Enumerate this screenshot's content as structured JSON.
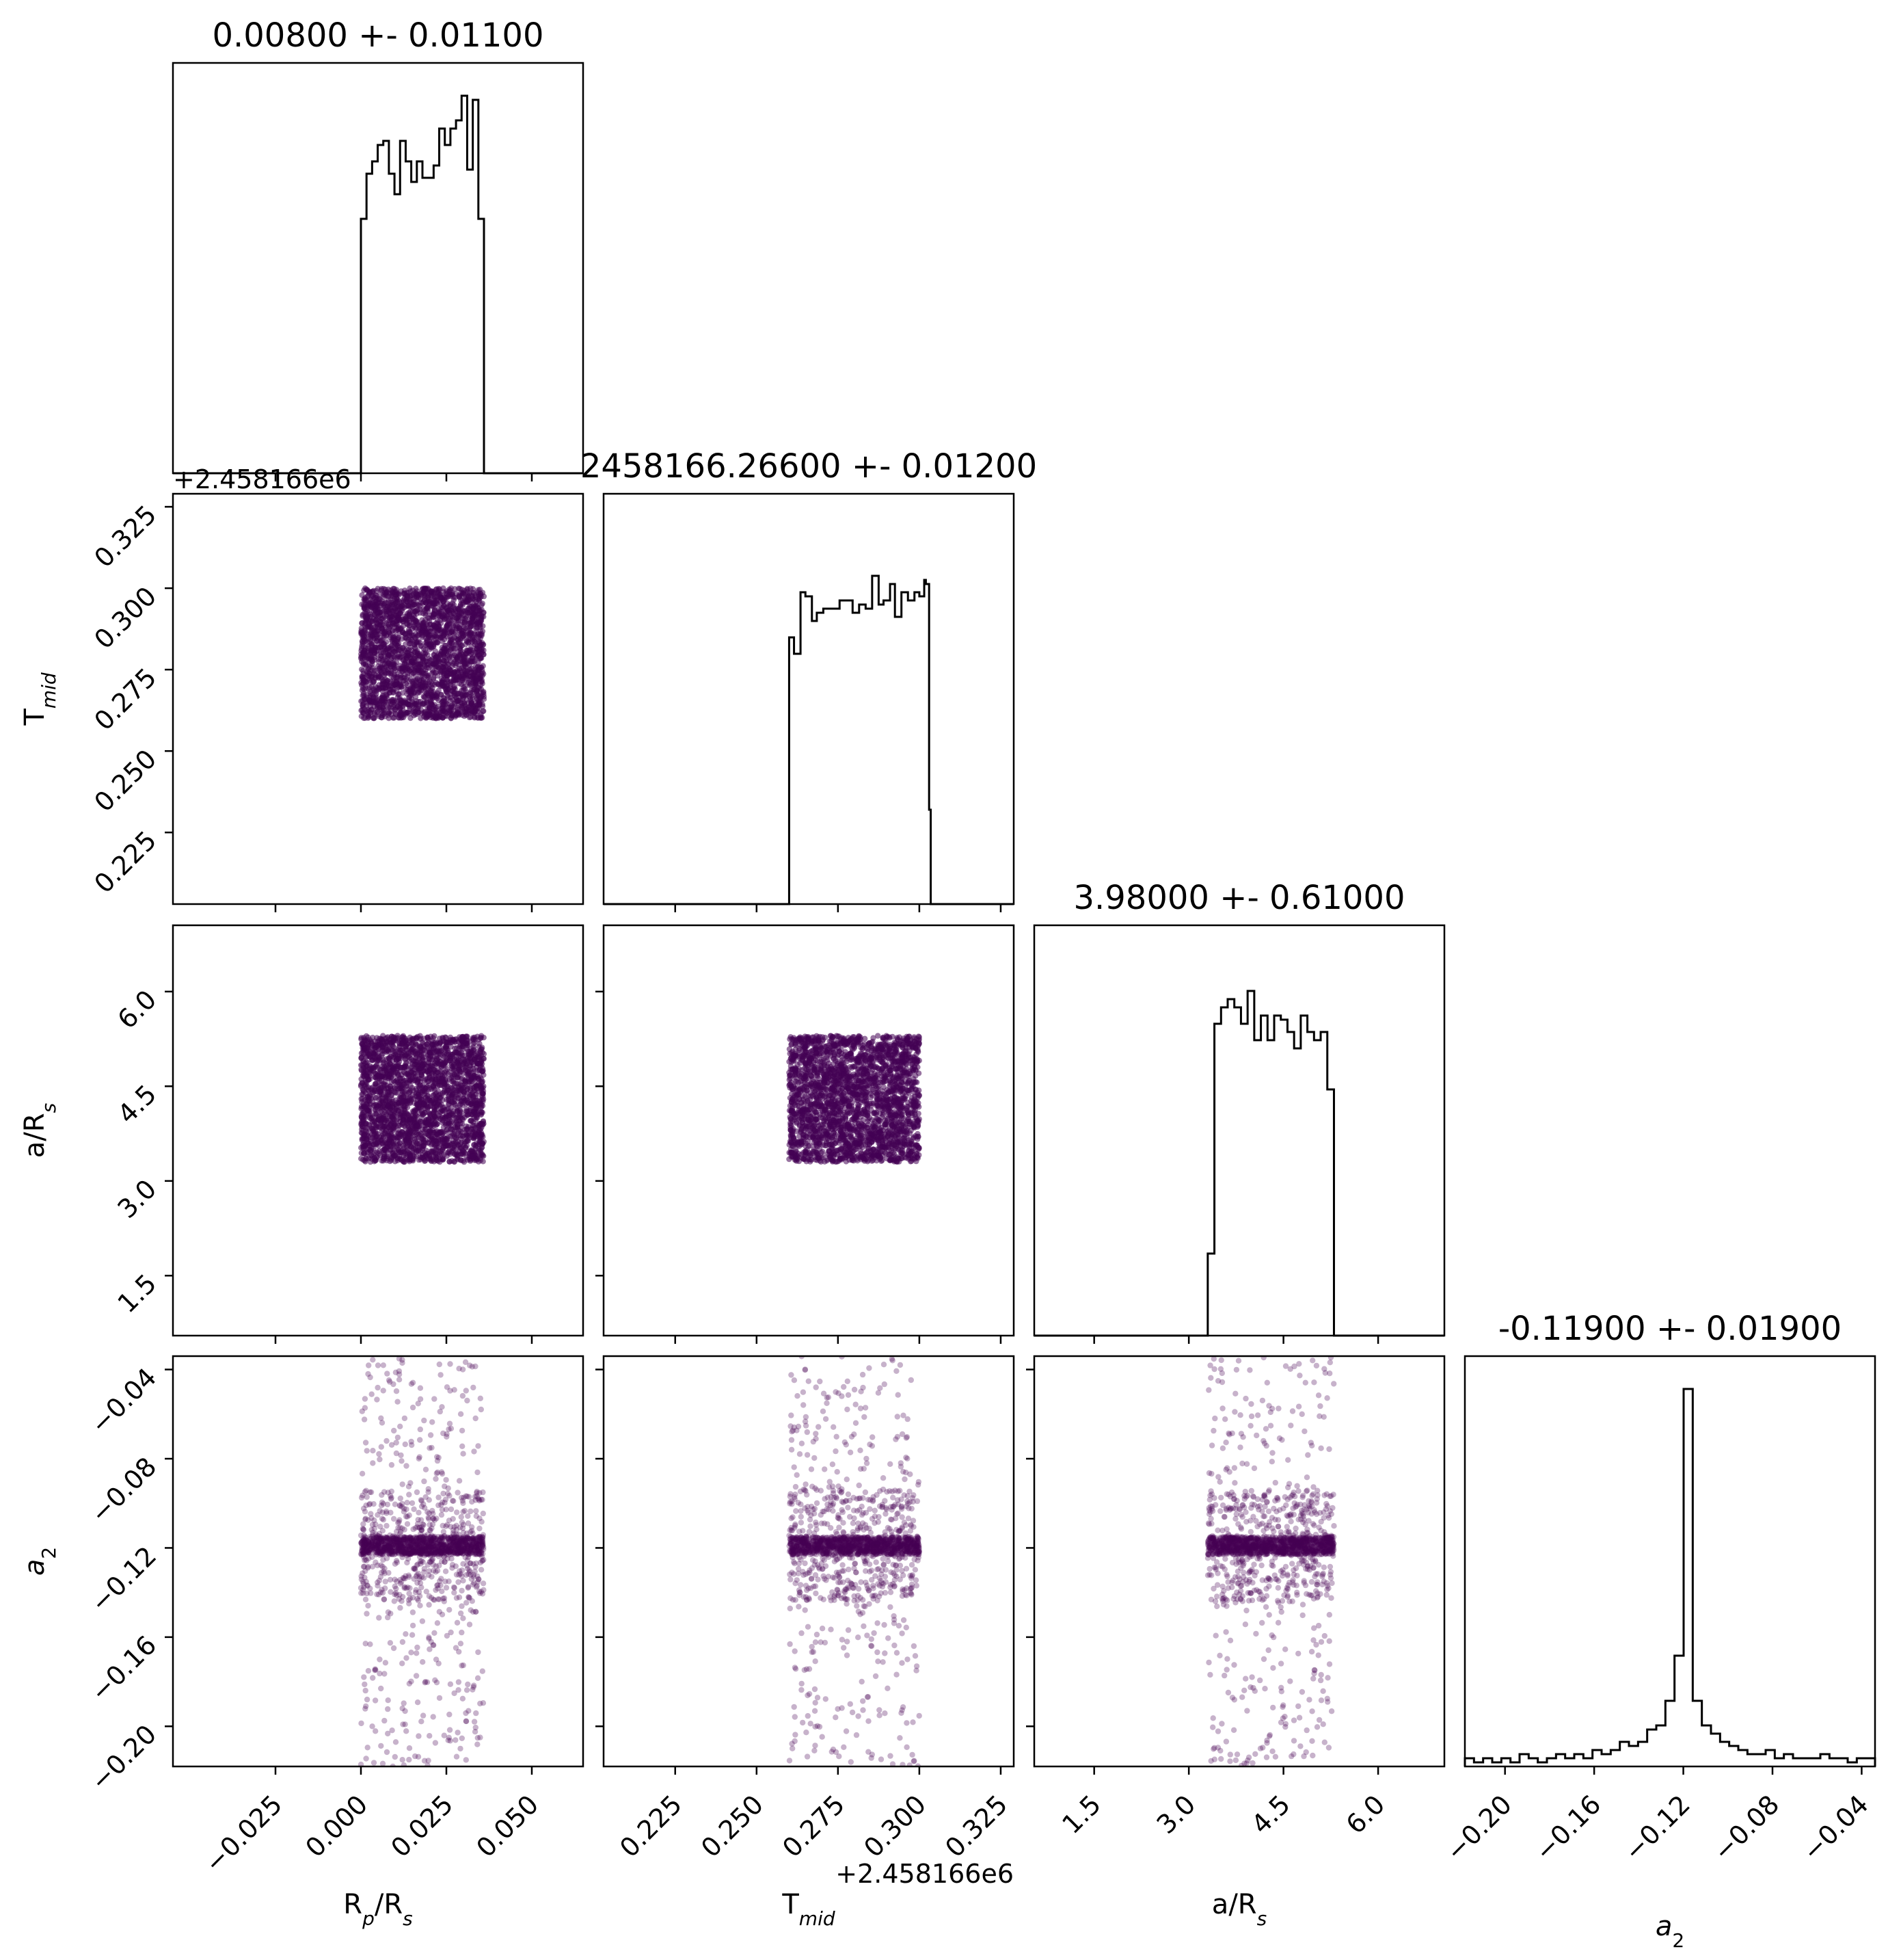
{
  "chart_data": {
    "type": "corner",
    "parameters": [
      {
        "key": "rp",
        "label_main": "R",
        "label_sub1": "p",
        "label_mid": "/R",
        "label_sub2": "s",
        "range": [
          -0.055,
          0.065
        ],
        "ticks": [
          -0.025,
          0.0,
          0.025,
          0.05
        ],
        "tick_labels": [
          "−0.025",
          "0.000",
          "0.025",
          "0.050"
        ],
        "title": "0.00800 +- 0.01100",
        "uniform_range": [
          0.0,
          0.036
        ],
        "hist_heights": [
          0.62,
          0.73,
          0.76,
          0.8,
          0.81,
          0.73,
          0.68,
          0.81,
          0.76,
          0.71,
          0.76,
          0.72,
          0.72,
          0.75,
          0.84,
          0.8,
          0.84,
          0.86,
          0.92,
          0.74,
          0.91,
          0.62
        ]
      },
      {
        "key": "tmid",
        "label_main": "T",
        "label_sub1": "mid",
        "label_mid": "",
        "label_sub2": "",
        "range": [
          0.203,
          0.329
        ],
        "ticks": [
          0.225,
          0.25,
          0.275,
          0.3,
          0.325
        ],
        "tick_labels": [
          "0.225",
          "0.250",
          "0.275",
          "0.300",
          "0.325"
        ],
        "offset_text": "+2.458166e6",
        "title": "2458166.26600 +- 0.01200",
        "uniform_range": [
          0.26,
          0.3
        ],
        "hist_heights": [
          0.65,
          0.61,
          0.76,
          0.75,
          0.69,
          0.71,
          0.72,
          0.72,
          0.74,
          0.74,
          0.71,
          0.73,
          0.72,
          0.8,
          0.73,
          0.74,
          0.78,
          0.7,
          0.76,
          0.74,
          0.76,
          0.75,
          0.79,
          0.78,
          0.23
        ],
        "hist_edges": [
          0.26,
          0.2615,
          0.2635,
          0.265,
          0.267,
          0.2685,
          0.2705,
          0.272,
          0.2755,
          0.2775,
          0.2795,
          0.2815,
          0.2835,
          0.2855,
          0.2875,
          0.289,
          0.291,
          0.2925,
          0.2945,
          0.2965,
          0.2985,
          0.3,
          0.3015,
          0.302,
          0.303,
          0.3035
        ]
      },
      {
        "key": "ars",
        "label_main": "a",
        "label_sub1": "",
        "label_mid": "/R",
        "label_sub2": "s",
        "range": [
          0.55,
          7.05
        ],
        "ticks": [
          1.5,
          3.0,
          4.5,
          6.0
        ],
        "tick_labels": [
          "1.5",
          "3.0",
          "4.5",
          "6.0"
        ],
        "title": "3.98000 +- 0.61000",
        "uniform_range": [
          3.3,
          5.3
        ],
        "hist_heights": [
          0.2,
          0.76,
          0.8,
          0.82,
          0.8,
          0.76,
          0.84,
          0.72,
          0.78,
          0.72,
          0.78,
          0.77,
          0.74,
          0.7,
          0.78,
          0.74,
          0.72,
          0.74,
          0.6
        ]
      },
      {
        "key": "a2",
        "label_main": "a",
        "label_sub1": "2",
        "label_mid": "",
        "label_sub2": "",
        "range": [
          -0.218,
          -0.034
        ],
        "ticks": [
          -0.2,
          -0.16,
          -0.12,
          -0.08,
          -0.04
        ],
        "tick_labels": [
          "−0.20",
          "−0.16",
          "−0.12",
          "−0.08",
          "−0.04"
        ],
        "ytick_labels": [
          "−0.20",
          "−0.16",
          "−0.12",
          "−0.08",
          "−0.04"
        ],
        "title": "-0.11900 +- 0.01900",
        "core_value": -0.119,
        "hist_heights": [
          0.02,
          0.01,
          0.02,
          0.01,
          0.02,
          0.01,
          0.03,
          0.02,
          0.01,
          0.02,
          0.03,
          0.02,
          0.03,
          0.02,
          0.04,
          0.03,
          0.04,
          0.06,
          0.05,
          0.06,
          0.09,
          0.1,
          0.16,
          0.27,
          0.92,
          0.16,
          0.1,
          0.08,
          0.06,
          0.05,
          0.04,
          0.03,
          0.03,
          0.04,
          0.02,
          0.03,
          0.02,
          0.02,
          0.02,
          0.03,
          0.02,
          0.02,
          0.01,
          0.02,
          0.02
        ]
      }
    ],
    "ylabels": {
      "tmid": {
        "ticks": [
          0.225,
          0.25,
          0.275,
          0.3,
          0.325
        ],
        "tick_labels": [
          "0.225",
          "0.250",
          "0.275",
          "0.300",
          "0.325"
        ],
        "offset_text": "+2.458166e6"
      },
      "ars": {
        "ticks": [
          1.5,
          3.0,
          4.5,
          6.0
        ],
        "tick_labels": [
          "1.5",
          "3.0",
          "4.5",
          "6.0"
        ]
      }
    },
    "point_color": "#440154",
    "hist_color": "#000000"
  }
}
